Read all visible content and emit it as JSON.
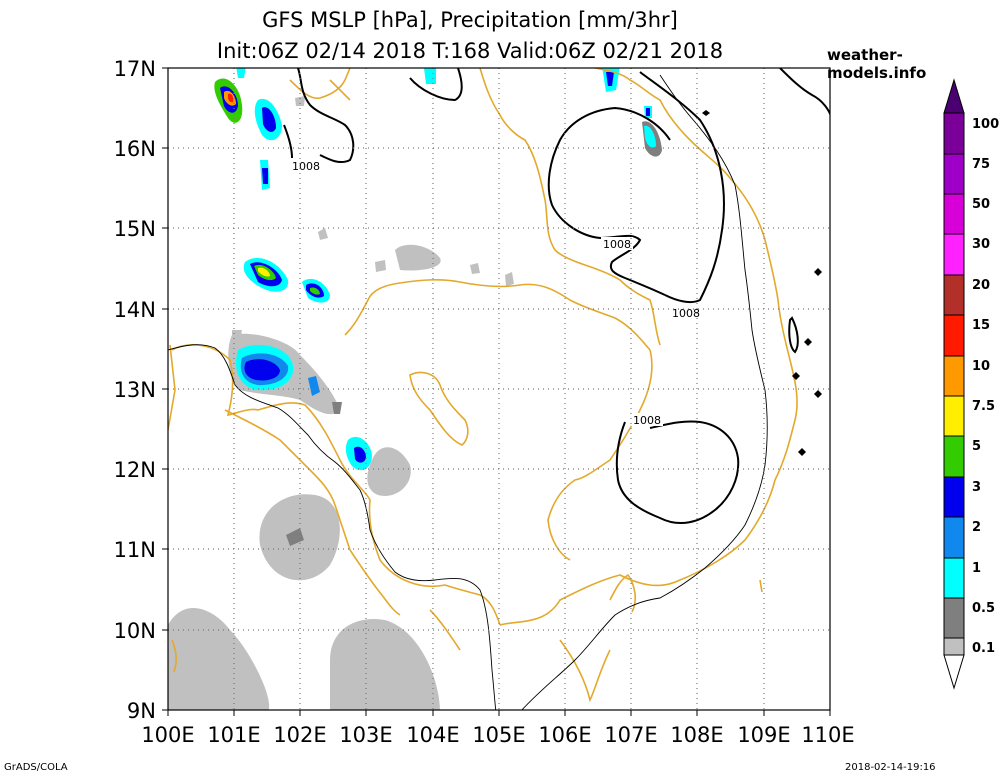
{
  "title_line1": "GFS MSLP [hPa], Precipitation [mm/3hr]",
  "title_line2": "Init:06Z 02/14 2018 T:168 Valid:06Z 02/21 2018",
  "brand": "weather-models.info",
  "footer_left": "GrADS/COLA",
  "footer_right": "2018-02-14-19:16",
  "map": {
    "lon_range": [
      100,
      110
    ],
    "lat_range": [
      9,
      17
    ],
    "lon_labels": [
      "100E",
      "101E",
      "102E",
      "103E",
      "104E",
      "105E",
      "106E",
      "107E",
      "108E",
      "109E",
      "110E"
    ],
    "lat_labels": [
      "17N",
      "16N",
      "15N",
      "14N",
      "13N",
      "12N",
      "11N",
      "10N",
      "9N"
    ],
    "isobar_label": "1008",
    "colors": {
      "border": "#e3a92c",
      "coast": "#000000",
      "isobar": "#000000"
    }
  },
  "legend": {
    "levels": [
      "100",
      "75",
      "50",
      "30",
      "20",
      "15",
      "10",
      "7.5",
      "5",
      "3",
      "2",
      "1",
      "0.5",
      "0.1"
    ],
    "colors": [
      "#7a0099",
      "#9f00c8",
      "#d800d8",
      "#ff22ff",
      "#b3302a",
      "#ff1a00",
      "#ff9900",
      "#ffee00",
      "#33cc00",
      "#0000ee",
      "#1188ee",
      "#00ffff",
      "#7f7f7f",
      "#c0c0c0"
    ]
  }
}
